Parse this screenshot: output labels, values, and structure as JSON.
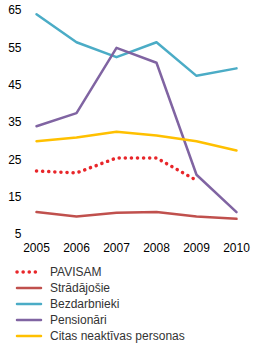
{
  "chart_data": {
    "type": "line",
    "categories": [
      "2005",
      "2006",
      "2007",
      "2008",
      "2009",
      "2010"
    ],
    "ylim": [
      5,
      65
    ],
    "yticks": [
      5,
      15,
      25,
      35,
      45,
      55,
      65
    ],
    "grid": false,
    "legend": "bottom",
    "series": [
      {
        "name": "PAVISAM",
        "color": "#e8262a",
        "line_style": "dotted",
        "values": [
          22,
          21.5,
          25.5,
          25.5,
          19.5,
          null
        ]
      },
      {
        "name": "Strādājošie",
        "color": "#c0504d",
        "line_style": "solid",
        "values": [
          11,
          9.8,
          10.8,
          11,
          9.8,
          9.2
        ]
      },
      {
        "name": "Bezdarbnieki",
        "color": "#4bacc6",
        "line_style": "solid",
        "values": [
          64,
          56.5,
          52.5,
          56.5,
          47.5,
          49.5
        ]
      },
      {
        "name": "Pensionāri",
        "color": "#8064a2",
        "line_style": "solid",
        "values": [
          34,
          37.5,
          55,
          51,
          21,
          11
        ]
      },
      {
        "name": "Citas neaktīvas personas",
        "color": "#ffc000",
        "line_style": "solid",
        "values": [
          30,
          31,
          32.5,
          31.5,
          30,
          27.5
        ]
      }
    ]
  }
}
